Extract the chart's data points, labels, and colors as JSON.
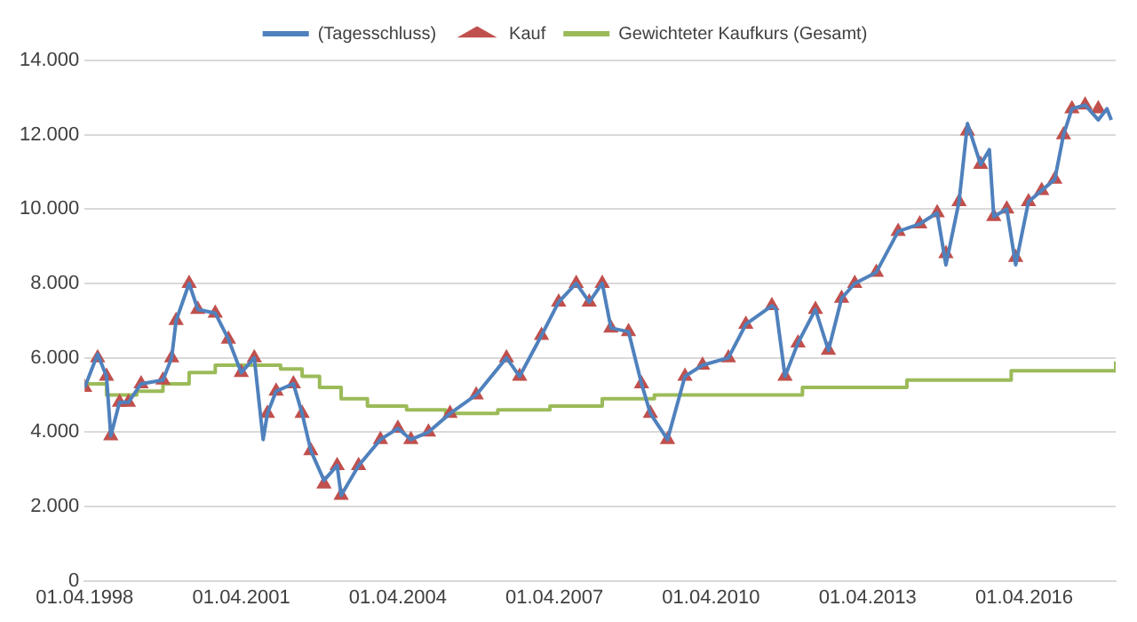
{
  "chart_data": {
    "type": "line",
    "legend": "top",
    "grid": "y",
    "xlim": [
      "1998-04-01",
      "2018-01-01"
    ],
    "xticks": [
      {
        "value": "1998-04-01",
        "label": "01.04.1998"
      },
      {
        "value": "2001-04-01",
        "label": "01.04.2001"
      },
      {
        "value": "2004-04-01",
        "label": "01.04.2004"
      },
      {
        "value": "2007-04-01",
        "label": "01.04.2007"
      },
      {
        "value": "2010-04-01",
        "label": "01.04.2010"
      },
      {
        "value": "2013-04-01",
        "label": "01.04.2013"
      },
      {
        "value": "2016-04-01",
        "label": "01.04.2016"
      }
    ],
    "ylim": [
      0,
      14000
    ],
    "yticks": [
      {
        "value": 0,
        "label": "0"
      },
      {
        "value": 2000,
        "label": "2.000"
      },
      {
        "value": 4000,
        "label": "4.000"
      },
      {
        "value": 6000,
        "label": "6.000"
      },
      {
        "value": 8000,
        "label": "8.000"
      },
      {
        "value": 10000,
        "label": "10.000"
      },
      {
        "value": 12000,
        "label": "12.000"
      },
      {
        "value": 14000,
        "label": "14.000"
      }
    ],
    "series": [
      {
        "name": "(Tagesschluss)",
        "type": "line",
        "marker": "none",
        "color": "#4f81bd",
        "x": [
          "1998-04",
          "1998-07",
          "1998-09",
          "1998-10",
          "1998-12",
          "1999-02",
          "1999-05",
          "1999-10",
          "1999-12",
          "2000-01",
          "2000-04",
          "2000-06",
          "2000-10",
          "2001-01",
          "2001-04",
          "2001-07",
          "2001-09",
          "2001-10",
          "2001-12",
          "2002-04",
          "2002-06",
          "2002-08",
          "2002-11",
          "2003-02",
          "2003-03",
          "2003-07",
          "2003-12",
          "2004-04",
          "2004-07",
          "2004-11",
          "2005-04",
          "2005-10",
          "2006-05",
          "2006-08",
          "2007-01",
          "2007-05",
          "2007-09",
          "2007-12",
          "2008-03",
          "2008-05",
          "2008-09",
          "2008-12",
          "2009-02",
          "2009-06",
          "2009-10",
          "2010-02",
          "2010-08",
          "2010-12",
          "2011-06",
          "2011-07",
          "2011-09",
          "2011-12",
          "2012-04",
          "2012-07",
          "2012-10",
          "2013-01",
          "2013-06",
          "2013-11",
          "2014-04",
          "2014-08",
          "2014-10",
          "2015-01",
          "2015-03",
          "2015-06",
          "2015-08",
          "2015-09",
          "2015-12",
          "2016-02",
          "2016-05",
          "2016-08",
          "2016-11",
          "2017-01",
          "2017-03",
          "2017-06",
          "2017-09",
          "2017-11",
          "2017-12"
        ],
        "values": [
          5200,
          6100,
          5500,
          3900,
          4800,
          4800,
          5300,
          5400,
          6000,
          7000,
          8000,
          7300,
          7200,
          6500,
          5600,
          6000,
          3800,
          4500,
          5100,
          5300,
          4500,
          3500,
          2700,
          3100,
          2300,
          3100,
          3800,
          4100,
          3800,
          4000,
          4500,
          5000,
          6000,
          5500,
          6600,
          7500,
          8000,
          7500,
          8000,
          6800,
          6700,
          5300,
          4500,
          3800,
          5500,
          5800,
          6000,
          6900,
          7400,
          7300,
          5500,
          6400,
          7300,
          6200,
          7600,
          8000,
          8300,
          9400,
          9600,
          9900,
          8500,
          10200,
          12300,
          11200,
          11600,
          9800,
          10000,
          8500,
          10200,
          10500,
          10800,
          12000,
          12700,
          12800,
          12400,
          12700,
          12400
        ]
      },
      {
        "name": "Kauf",
        "type": "scatter",
        "marker": "triangle",
        "color": "#c0504d",
        "x": [
          "1998-04",
          "1998-07",
          "1998-09",
          "1998-10",
          "1998-12",
          "1999-02",
          "1999-05",
          "1999-10",
          "1999-12",
          "2000-01",
          "2000-04",
          "2000-06",
          "2000-10",
          "2001-01",
          "2001-04",
          "2001-07",
          "2001-10",
          "2001-12",
          "2002-04",
          "2002-06",
          "2002-08",
          "2002-11",
          "2003-02",
          "2003-03",
          "2003-07",
          "2003-12",
          "2004-04",
          "2004-07",
          "2004-11",
          "2005-04",
          "2005-10",
          "2006-05",
          "2006-08",
          "2007-01",
          "2007-05",
          "2007-09",
          "2007-12",
          "2008-03",
          "2008-05",
          "2008-09",
          "2008-12",
          "2009-02",
          "2009-06",
          "2009-10",
          "2010-02",
          "2010-08",
          "2010-12",
          "2011-06",
          "2011-09",
          "2011-12",
          "2012-04",
          "2012-07",
          "2012-10",
          "2013-01",
          "2013-06",
          "2013-11",
          "2014-04",
          "2014-08",
          "2014-10",
          "2015-01",
          "2015-03",
          "2015-06",
          "2015-09",
          "2015-12",
          "2016-02",
          "2016-05",
          "2016-08",
          "2016-11",
          "2017-01",
          "2017-03",
          "2017-06",
          "2017-09"
        ],
        "values": [
          5200,
          6000,
          5500,
          3900,
          4800,
          4800,
          5300,
          5400,
          6000,
          7000,
          8000,
          7300,
          7200,
          6500,
          5600,
          6000,
          4500,
          5100,
          5300,
          4500,
          3500,
          2600,
          3100,
          2300,
          3100,
          3800,
          4100,
          3800,
          4000,
          4500,
          5000,
          6000,
          5500,
          6600,
          7500,
          8000,
          7500,
          8000,
          6800,
          6700,
          5300,
          4500,
          3800,
          5500,
          5800,
          6000,
          6900,
          7400,
          5500,
          6400,
          7300,
          6200,
          7600,
          8000,
          8300,
          9400,
          9600,
          9900,
          8800,
          10200,
          12100,
          11200,
          9800,
          10000,
          8700,
          10200,
          10500,
          10800,
          12000,
          12700,
          12800,
          12700
        ]
      },
      {
        "name": "Gewichteter Kaufkurs (Gesamt)",
        "type": "step",
        "marker": "none",
        "color": "#9bbb59",
        "x": [
          "1998-04",
          "1998-09",
          "1999-04",
          "1999-10",
          "2000-04",
          "2000-10",
          "2001-06",
          "2002-01",
          "2002-06",
          "2002-10",
          "2003-03",
          "2003-09",
          "2004-06",
          "2005-03",
          "2006-03",
          "2007-03",
          "2008-03",
          "2009-03",
          "2010-03",
          "2012-01",
          "2014-01",
          "2016-01",
          "2018-01"
        ],
        "values": [
          5300,
          5000,
          5100,
          5300,
          5600,
          5800,
          5800,
          5700,
          5500,
          5200,
          4900,
          4700,
          4600,
          4500,
          4600,
          4700,
          4900,
          5000,
          5000,
          5200,
          5400,
          5650,
          5900
        ]
      }
    ]
  }
}
